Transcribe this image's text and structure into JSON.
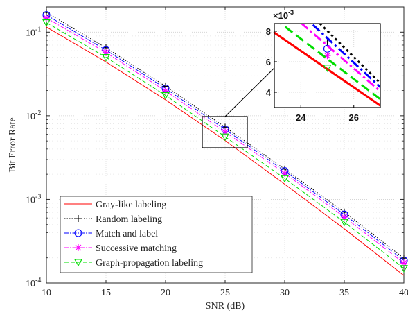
{
  "chart_data": {
    "type": "line",
    "title": "",
    "xlabel": "SNR (dB)",
    "ylabel": "Bit Error Rate",
    "x": [
      10,
      15,
      20,
      25,
      30,
      35,
      40
    ],
    "xlim": [
      10,
      40
    ],
    "ylim": [
      0.0001,
      0.2
    ],
    "yscale": "log",
    "grid": true,
    "legend_position": "bottom-left",
    "xticks": [
      "10",
      "15",
      "20",
      "25",
      "30",
      "35",
      "40"
    ],
    "yticks": [
      {
        "value": 0.0001,
        "base": "10",
        "exp": "-4"
      },
      {
        "value": 0.001,
        "base": "10",
        "exp": "-3"
      },
      {
        "value": 0.01,
        "base": "10",
        "exp": "-2"
      },
      {
        "value": 0.1,
        "base": "10",
        "exp": "-1"
      }
    ],
    "series": [
      {
        "name": "Gray-like labeling",
        "color": "#ff0000",
        "dash": "",
        "marker": "none",
        "values": [
          0.115,
          0.044,
          0.0155,
          0.00505,
          0.00152,
          0.000445,
          0.000123
        ]
      },
      {
        "name": "Random labeling",
        "color": "#000000",
        "dash": "1.5,2",
        "marker": "plus",
        "values": [
          0.172,
          0.065,
          0.0225,
          0.0073,
          0.0023,
          0.000705,
          0.000198
        ]
      },
      {
        "name": "Match and label",
        "color": "#0000ff",
        "dash": "6,2,1.5,2",
        "marker": "circle",
        "values": [
          0.16,
          0.061,
          0.0212,
          0.00685,
          0.00218,
          0.00066,
          0.000186
        ]
      },
      {
        "name": "Successive matching",
        "color": "#ff00ff",
        "dash": "6,2,1.5,2",
        "marker": "asterisk",
        "values": [
          0.148,
          0.057,
          0.0198,
          0.0064,
          0.00205,
          0.000615,
          0.000173
        ]
      },
      {
        "name": "Graph-propagation labeling",
        "color": "#00dd00",
        "dash": "6,3",
        "marker": "triangle-down",
        "values": [
          0.13,
          0.05,
          0.0175,
          0.0056,
          0.00178,
          0.000535,
          0.00015
        ]
      }
    ],
    "inset": {
      "x_ticks": [
        "24",
        "26"
      ],
      "y_ticks": [
        "4",
        "6",
        "8"
      ],
      "y_multiplier_base": "×10",
      "y_multiplier_exp": "-3",
      "xlim": [
        23,
        27
      ],
      "ylim": [
        3,
        8.5
      ]
    }
  }
}
